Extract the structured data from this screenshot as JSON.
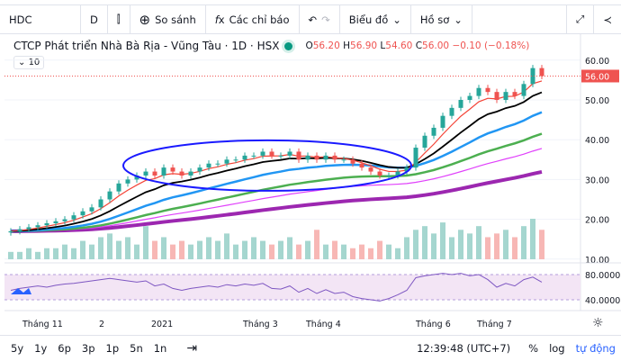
{
  "toolbar": {
    "symbol": "HDC",
    "interval": "D",
    "compare": "So sánh",
    "indicators": "Các chỉ báo",
    "chart": "Biểu đồ",
    "profile": "Hồ sơ"
  },
  "legend": {
    "title": "CTCP Phát triển Nhà Bà Rịa - Vũng Tàu · 1D · HSX",
    "o_label": "O",
    "o": "56.20",
    "h_label": "H",
    "h": "56.90",
    "l_label": "L",
    "l": "54.60",
    "c_label": "C",
    "c": "56.00",
    "change": "−0.10 (−0.18%)",
    "collapse": "10"
  },
  "price_axis": {
    "ticks": [
      "60.00",
      "50.00",
      "40.00",
      "30.00",
      "20.00",
      "10.00"
    ],
    "last": "56.00"
  },
  "rsi_axis": {
    "ticks": [
      "80.0000",
      "40.0000"
    ]
  },
  "time_axis": [
    "Tháng 11",
    "2",
    "2021",
    "Tháng 3",
    "Tháng 4",
    "Tháng 6",
    "Tháng 7"
  ],
  "bottom": {
    "ranges": [
      "5y",
      "1y",
      "6p",
      "3p",
      "1p",
      "5n",
      "1n"
    ],
    "clock": "12:39:48 (UTC+7)",
    "percent": "%",
    "log": "log",
    "auto": "tự động"
  },
  "colors": {
    "up": "#26a69a",
    "down": "#ef5350",
    "accent": "#2962ff",
    "rsi": "#7e57c2"
  },
  "chart_data": {
    "type": "candlestick",
    "ylim": [
      10,
      62
    ],
    "close": [
      17,
      17.5,
      18,
      18.5,
      19,
      19.5,
      20,
      21,
      22,
      23,
      25,
      27,
      29,
      30,
      31,
      32,
      31,
      33,
      32,
      31,
      32,
      33,
      34,
      34,
      35,
      35,
      36,
      36,
      37,
      36,
      36,
      37,
      35,
      36,
      35,
      36,
      35,
      35,
      34,
      33,
      32,
      31,
      31,
      32,
      33,
      38,
      41,
      43,
      46,
      48,
      50,
      51,
      53,
      52,
      50,
      52,
      51,
      54,
      58,
      56
    ],
    "volume": [
      2,
      2,
      3,
      2,
      3,
      3,
      4,
      3,
      5,
      4,
      6,
      7,
      5,
      6,
      4,
      9,
      5,
      6,
      4,
      5,
      4,
      5,
      6,
      5,
      7,
      4,
      5,
      6,
      5,
      4,
      5,
      6,
      4,
      5,
      8,
      4,
      5,
      4,
      3,
      4,
      3,
      5,
      4,
      3,
      6,
      8,
      9,
      7,
      10,
      6,
      8,
      7,
      9,
      6,
      7,
      8,
      6,
      9,
      11,
      8
    ],
    "rsi": [
      55,
      58,
      60,
      62,
      60,
      63,
      65,
      66,
      68,
      70,
      72,
      74,
      72,
      70,
      68,
      70,
      62,
      65,
      58,
      55,
      58,
      60,
      62,
      60,
      64,
      62,
      65,
      63,
      66,
      58,
      57,
      62,
      52,
      58,
      50,
      56,
      50,
      52,
      45,
      42,
      40,
      38,
      42,
      48,
      55,
      75,
      78,
      80,
      82,
      80,
      82,
      78,
      80,
      72,
      60,
      66,
      62,
      72,
      76,
      68
    ]
  }
}
